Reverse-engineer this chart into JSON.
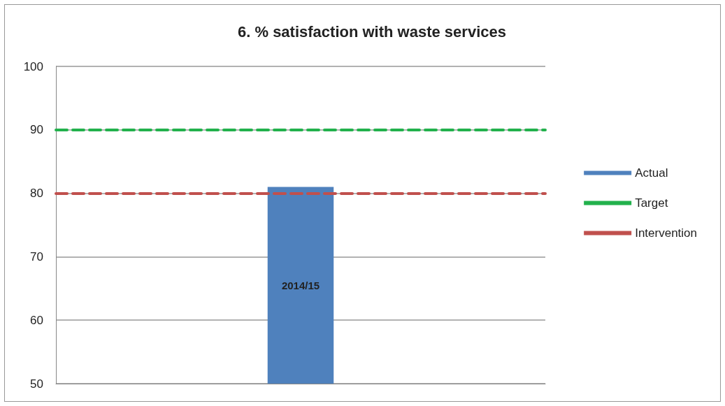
{
  "chart_data": {
    "type": "bar",
    "title": "6. % satisfaction with waste services",
    "categories": [
      "2014/15"
    ],
    "series": [
      {
        "name": "Actual",
        "color": "#4f81bd",
        "values": [
          81
        ]
      }
    ],
    "ref_lines": [
      {
        "axis": "y",
        "value": 90,
        "label": "Target",
        "color": "#22b14c",
        "line_style": "dashed"
      },
      {
        "axis": "y",
        "value": 80,
        "label": "Intervention",
        "color": "#c0504d",
        "line_style": "dashed"
      }
    ],
    "ylim": [
      50,
      100
    ],
    "yticks": [
      50,
      60,
      70,
      80,
      90,
      100
    ],
    "grid": "y",
    "legend": "right"
  }
}
